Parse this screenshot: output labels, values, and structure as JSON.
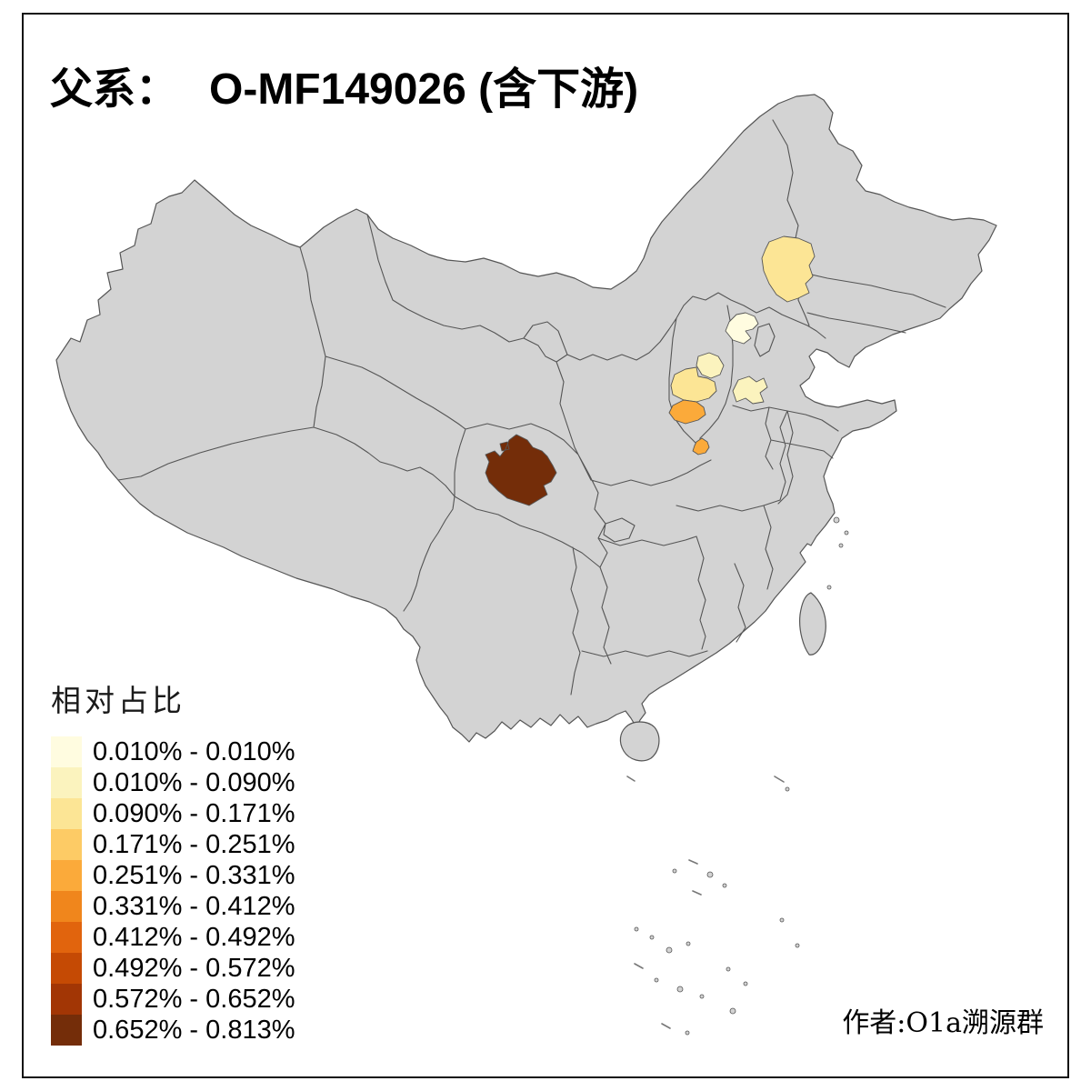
{
  "title": {
    "prefix": "父系：",
    "main": "O-MF149026 (含下游)"
  },
  "legend": {
    "title": "相对占比",
    "classes": [
      {
        "label": "0.010% - 0.010%",
        "color": "#FFFCE0"
      },
      {
        "label": "0.010% - 0.090%",
        "color": "#FBF3BE"
      },
      {
        "label": "0.090% - 0.171%",
        "color": "#FCE595"
      },
      {
        "label": "0.171% - 0.251%",
        "color": "#FDCB65"
      },
      {
        "label": "0.251% - 0.331%",
        "color": "#FBAA3A"
      },
      {
        "label": "0.331% - 0.412%",
        "color": "#F0861C"
      },
      {
        "label": "0.412% - 0.492%",
        "color": "#E1640D"
      },
      {
        "label": "0.492% - 0.572%",
        "color": "#C54A04"
      },
      {
        "label": "0.572% - 0.652%",
        "color": "#A23605"
      },
      {
        "label": "0.652% - 0.813%",
        "color": "#742D09"
      }
    ]
  },
  "attribution": "作者:O1a溯源群",
  "map": {
    "land_fill": "#D3D3D3",
    "border_color": "#555555",
    "background": "#FFFFFF",
    "regions": [
      {
        "name": "region-inner-mongolia-central",
        "class_index": 2,
        "value_range": "0.090% - 0.171%"
      },
      {
        "name": "region-beijing",
        "class_index": 0,
        "value_range": "0.010% - 0.010%"
      },
      {
        "name": "region-shanxi-north",
        "class_index": 1,
        "value_range": "0.010% - 0.090%"
      },
      {
        "name": "region-shanxi-west",
        "class_index": 2,
        "value_range": "0.090% - 0.171%"
      },
      {
        "name": "region-shandong-west",
        "class_index": 1,
        "value_range": "0.010% - 0.090%"
      },
      {
        "name": "region-shanxi-southwest",
        "class_index": 4,
        "value_range": "0.251% - 0.331%"
      },
      {
        "name": "region-henan-west",
        "class_index": 4,
        "value_range": "0.251% - 0.331%"
      },
      {
        "name": "region-sichuan-northwest",
        "class_index": 9,
        "value_range": "0.652% - 0.813%"
      }
    ]
  }
}
